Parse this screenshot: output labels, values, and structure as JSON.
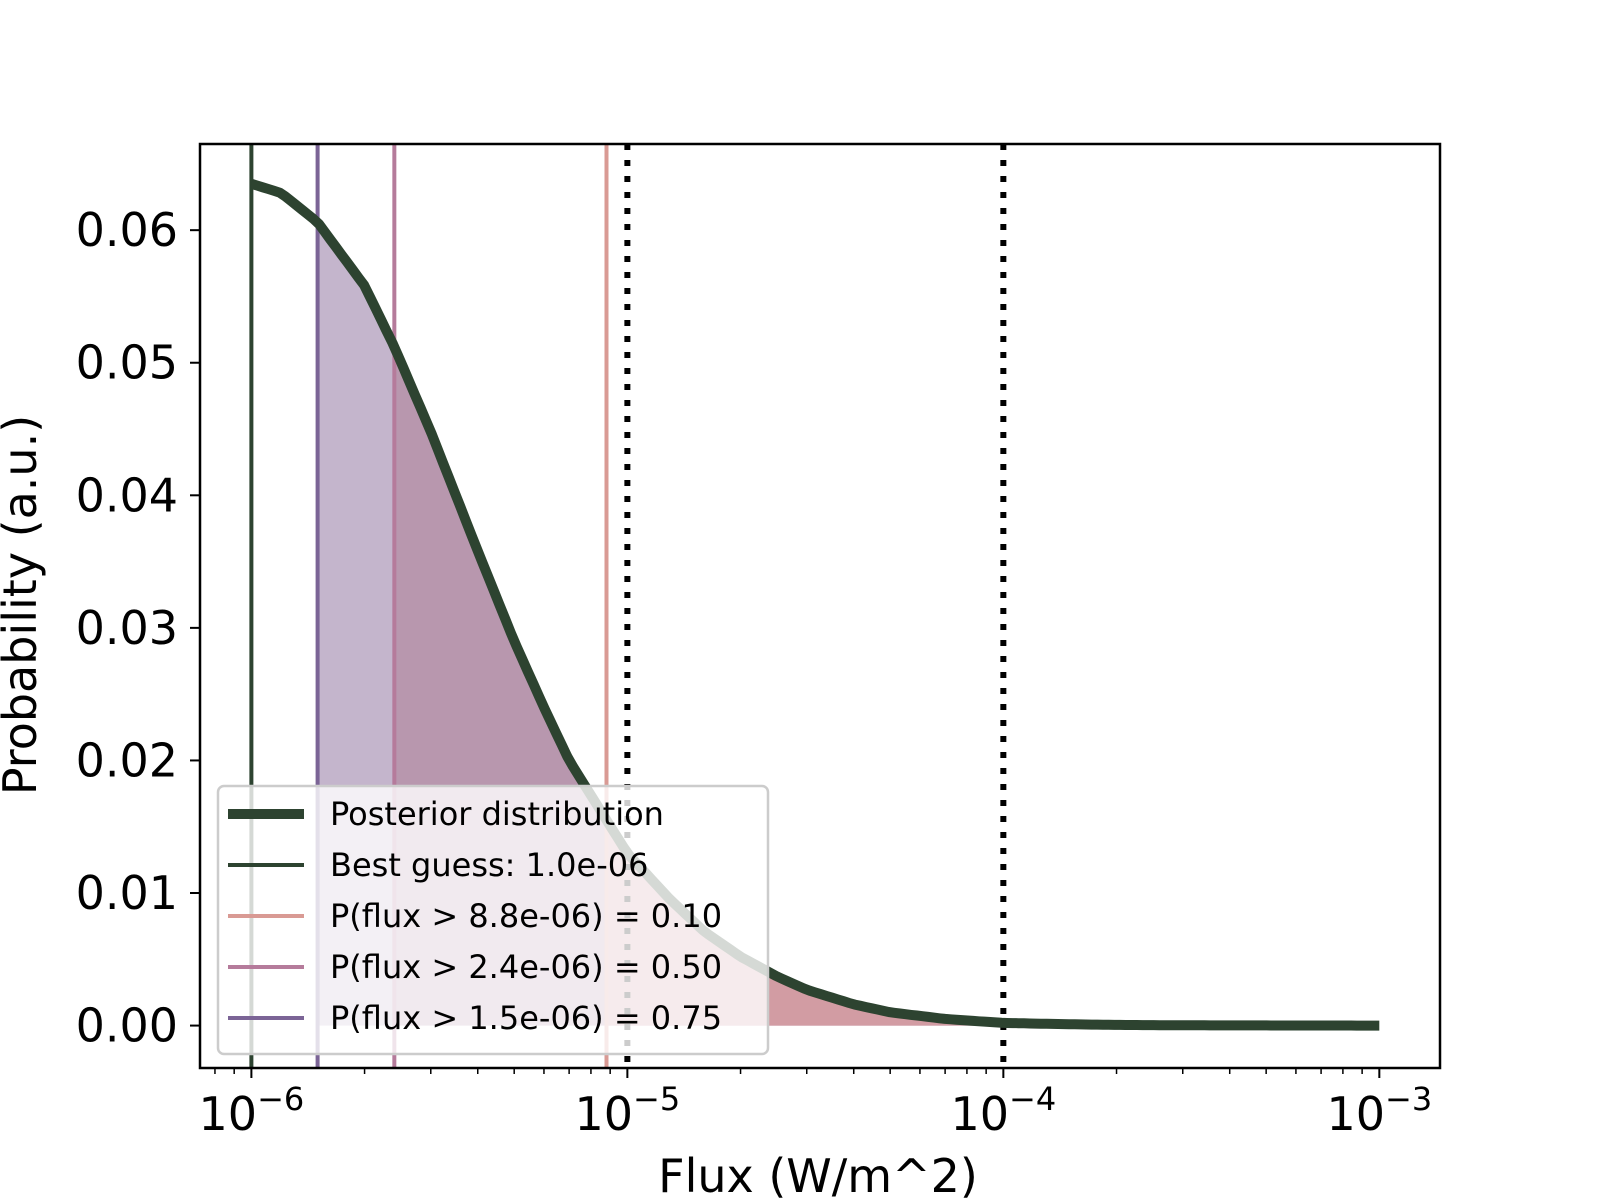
{
  "chart_data": {
    "type": "line",
    "title": "",
    "xlabel": "Flux (W/m^2)",
    "ylabel": "Probability (a.u.)",
    "xscale": "log",
    "xlim": [
      7.3e-07,
      0.00145
    ],
    "ylim": [
      -0.0032,
      0.0665
    ],
    "x_ticks": [
      {
        "value": 1e-06,
        "base": "10",
        "exp": "−6"
      },
      {
        "value": 1e-05,
        "base": "10",
        "exp": "−5"
      },
      {
        "value": 0.0001,
        "base": "10",
        "exp": "−4"
      },
      {
        "value": 0.001,
        "base": "10",
        "exp": "−3"
      }
    ],
    "y_ticks": [
      {
        "value": 0.0,
        "label": "0.00"
      },
      {
        "value": 0.01,
        "label": "0.01"
      },
      {
        "value": 0.02,
        "label": "0.02"
      },
      {
        "value": 0.03,
        "label": "0.03"
      },
      {
        "value": 0.04,
        "label": "0.04"
      },
      {
        "value": 0.05,
        "label": "0.05"
      },
      {
        "value": 0.06,
        "label": "0.06"
      }
    ],
    "grid": false,
    "series": [
      {
        "name": "Posterior distribution",
        "color": "#2d4330",
        "x": [
          1e-06,
          1.2e-06,
          1.5e-06,
          2e-06,
          2.4e-06,
          3e-06,
          4e-06,
          5e-06,
          6e-06,
          7e-06,
          8.8e-06,
          1e-05,
          1.3e-05,
          1.6e-05,
          2e-05,
          2.5e-05,
          3e-05,
          4e-05,
          5e-05,
          7e-05,
          0.0001,
          0.00015,
          0.0002,
          0.0003,
          0.0005,
          0.001
        ],
        "y": [
          0.0635,
          0.0628,
          0.0606,
          0.0558,
          0.0512,
          0.0448,
          0.0358,
          0.029,
          0.024,
          0.02,
          0.0155,
          0.013,
          0.0095,
          0.0071,
          0.0052,
          0.0037,
          0.0027,
          0.0016,
          0.001,
          0.0005,
          0.0002,
          0.0001,
          5e-05,
          2e-05,
          1e-05,
          0.0
        ]
      }
    ],
    "vlines": [
      {
        "name": "Best guess: 1.0e-06",
        "x": 1e-06,
        "color": "#2d4330"
      },
      {
        "name": "P(flux > 8.8e-06) = 0.10",
        "x": 8.8e-06,
        "color": "#d99a94"
      },
      {
        "name": "P(flux > 2.4e-06) = 0.50",
        "x": 2.4e-06,
        "color": "#b57b9b"
      },
      {
        "name": "P(flux > 1.5e-06) = 0.75",
        "x": 1.5e-06,
        "color": "#7b6496"
      }
    ],
    "dotted_vlines": [
      1e-05,
      0.0001
    ],
    "shaded_regions": [
      {
        "from": 1.5e-06,
        "to": 2.4e-06,
        "color": "#c4b5cc"
      },
      {
        "from": 2.4e-06,
        "to": 0.001,
        "color": "#b897ae"
      },
      {
        "from": 8.8e-06,
        "to": 0.001,
        "color": "#d29ca3"
      }
    ],
    "legend": {
      "position": "lower-left",
      "entries": [
        {
          "label": "Posterior distribution",
          "color": "#2d4330",
          "thick": true
        },
        {
          "label": "Best guess: 1.0e-06",
          "color": "#2d4330",
          "thick": false
        },
        {
          "label": "P(flux > 8.8e-06) = 0.10",
          "color": "#d99a94",
          "thick": false
        },
        {
          "label": "P(flux > 2.4e-06) = 0.50",
          "color": "#b57b9b",
          "thick": false
        },
        {
          "label": "P(flux > 1.5e-06) = 0.75",
          "color": "#7b6496",
          "thick": false
        }
      ]
    }
  }
}
